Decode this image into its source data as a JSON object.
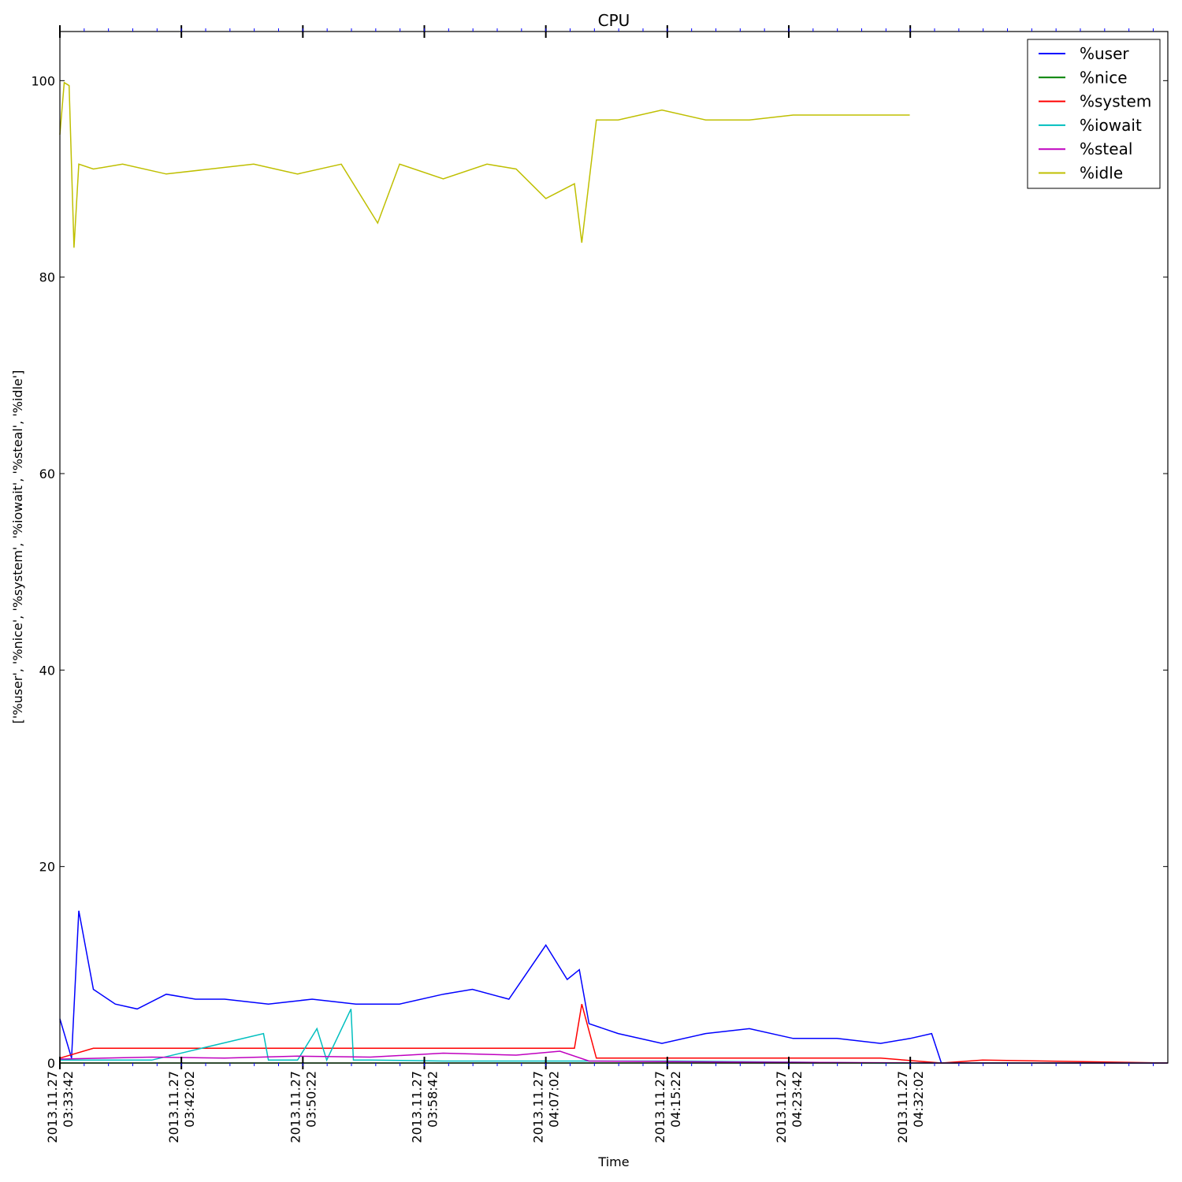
{
  "chart_data": {
    "type": "line",
    "title": "CPU",
    "xlabel": "Time",
    "ylabel": "['%user', '%nice', '%system', '%iowait', '%steal', '%idle']",
    "xlim": [
      "2013-11-27T03:33:42",
      "2013-11-27T04:49:42"
    ],
    "ylim": [
      0,
      105
    ],
    "yticks": [
      0,
      20,
      40,
      60,
      80,
      100
    ],
    "xticks": [
      {
        "value": "2013-11-27T03:33:42",
        "line1": "2013.11.27",
        "line2": "03:33:42"
      },
      {
        "value": "2013-11-27T03:42:02",
        "line1": "2013.11.27",
        "line2": "03:42:02"
      },
      {
        "value": "2013-11-27T03:50:22",
        "line1": "2013.11.27",
        "line2": "03:50:22"
      },
      {
        "value": "2013-11-27T03:58:42",
        "line1": "2013.11.27",
        "line2": "03:58:42"
      },
      {
        "value": "2013-11-27T04:07:02",
        "line1": "2013.11.27",
        "line2": "04:07:02"
      },
      {
        "value": "2013-11-27T04:15:22",
        "line1": "2013.11.27",
        "line2": "04:15:22"
      },
      {
        "value": "2013-11-27T04:23:42",
        "line1": "2013.11.27",
        "line2": "04:23:42"
      },
      {
        "value": "2013-11-27T04:32:02",
        "line1": "2013.11.27",
        "line2": "04:32:02"
      }
    ],
    "grid": false,
    "legend": "top-right",
    "series": [
      {
        "name": "%user",
        "color": "#0000ff",
        "x": [
          "2013-11-27T03:33:42",
          "2013-11-27T03:34:30",
          "2013-11-27T03:35:00",
          "2013-11-27T03:36:00",
          "2013-11-27T03:37:30",
          "2013-11-27T03:39:00",
          "2013-11-27T03:41:00",
          "2013-11-27T03:43:00",
          "2013-11-27T03:45:00",
          "2013-11-27T03:48:00",
          "2013-11-27T03:51:00",
          "2013-11-27T03:54:00",
          "2013-11-27T03:57:00",
          "2013-11-27T04:00:00",
          "2013-11-27T04:02:00",
          "2013-11-27T04:04:30",
          "2013-11-27T04:07:02",
          "2013-11-27T04:08:30",
          "2013-11-27T04:09:20",
          "2013-11-27T04:10:00",
          "2013-11-27T04:12:00",
          "2013-11-27T04:15:00",
          "2013-11-27T04:18:00",
          "2013-11-27T04:21:00",
          "2013-11-27T04:24:00",
          "2013-11-27T04:27:00",
          "2013-11-27T04:30:00",
          "2013-11-27T04:32:02",
          "2013-11-27T04:33:30",
          "2013-11-27T04:34:10",
          "2013-11-27T04:49:42"
        ],
        "y": [
          4.5,
          0.5,
          15.5,
          7.5,
          6.0,
          5.5,
          7.0,
          6.5,
          6.5,
          6.0,
          6.5,
          6.0,
          6.0,
          7.0,
          7.5,
          6.5,
          12.0,
          8.5,
          9.5,
          4.0,
          3.0,
          2.0,
          3.0,
          3.5,
          2.5,
          2.5,
          2.0,
          2.5,
          3.0,
          0.0,
          0.0
        ]
      },
      {
        "name": "%nice",
        "color": "#008000",
        "x": [
          "2013-11-27T03:33:42",
          "2013-11-27T04:34:10",
          "2013-11-27T04:49:42"
        ],
        "y": [
          0.0,
          0.0,
          0.0
        ]
      },
      {
        "name": "%system",
        "color": "#ff0000",
        "x": [
          "2013-11-27T03:33:42",
          "2013-11-27T03:36:00",
          "2013-11-27T03:40:00",
          "2013-11-27T03:45:00",
          "2013-11-27T03:50:00",
          "2013-11-27T03:55:00",
          "2013-11-27T04:00:00",
          "2013-11-27T04:05:00",
          "2013-11-27T04:09:00",
          "2013-11-27T04:09:30",
          "2013-11-27T04:10:30",
          "2013-11-27T04:15:00",
          "2013-11-27T04:20:00",
          "2013-11-27T04:25:00",
          "2013-11-27T04:30:00",
          "2013-11-27T04:34:10",
          "2013-11-27T04:37:00",
          "2013-11-27T04:49:42"
        ],
        "y": [
          0.5,
          1.5,
          1.5,
          1.5,
          1.5,
          1.5,
          1.5,
          1.5,
          1.5,
          6.0,
          0.5,
          0.5,
          0.5,
          0.5,
          0.5,
          0.0,
          0.3,
          0.0
        ]
      },
      {
        "name": "%iowait",
        "color": "#00bfbf",
        "x": [
          "2013-11-27T03:33:42",
          "2013-11-27T03:40:00",
          "2013-11-27T03:47:40",
          "2013-11-27T03:48:00",
          "2013-11-27T03:50:00",
          "2013-11-27T03:51:20",
          "2013-11-27T03:52:00",
          "2013-11-27T03:53:40",
          "2013-11-27T03:53:50",
          "2013-11-27T03:55:00",
          "2013-11-27T04:00:00",
          "2013-11-27T04:05:00",
          "2013-11-27T04:10:00",
          "2013-11-27T04:16:00",
          "2013-11-27T04:30:00",
          "2013-11-27T04:49:42"
        ],
        "y": [
          0.3,
          0.3,
          3.0,
          0.3,
          0.3,
          3.5,
          0.3,
          5.5,
          0.3,
          0.3,
          0.2,
          0.2,
          0.2,
          0.2,
          0.0,
          0.0
        ]
      },
      {
        "name": "%steal",
        "color": "#bf00bf",
        "x": [
          "2013-11-27T03:33:42",
          "2013-11-27T03:40:00",
          "2013-11-27T03:45:00",
          "2013-11-27T03:50:00",
          "2013-11-27T03:55:00",
          "2013-11-27T04:00:00",
          "2013-11-27T04:05:00",
          "2013-11-27T04:08:00",
          "2013-11-27T04:10:00",
          "2013-11-27T04:20:00",
          "2013-11-27T04:34:10",
          "2013-11-27T04:49:42"
        ],
        "y": [
          0.4,
          0.6,
          0.5,
          0.7,
          0.6,
          1.0,
          0.8,
          1.2,
          0.2,
          0.1,
          0.0,
          0.0
        ]
      },
      {
        "name": "%idle",
        "color": "#bfbf00",
        "x": [
          "2013-11-27T03:33:42",
          "2013-11-27T03:34:00",
          "2013-11-27T03:34:20",
          "2013-11-27T03:34:40",
          "2013-11-27T03:35:00",
          "2013-11-27T03:36:00",
          "2013-11-27T03:38:00",
          "2013-11-27T03:41:00",
          "2013-11-27T03:44:00",
          "2013-11-27T03:47:00",
          "2013-11-27T03:50:00",
          "2013-11-27T03:53:00",
          "2013-11-27T03:55:30",
          "2013-11-27T03:57:00",
          "2013-11-27T04:00:00",
          "2013-11-27T04:03:00",
          "2013-11-27T04:05:00",
          "2013-11-27T04:07:02",
          "2013-11-27T04:09:00",
          "2013-11-27T04:09:30",
          "2013-11-27T04:10:30",
          "2013-11-27T04:12:00",
          "2013-11-27T04:15:00",
          "2013-11-27T04:18:00",
          "2013-11-27T04:21:00",
          "2013-11-27T04:24:00",
          "2013-11-27T04:27:00",
          "2013-11-27T04:30:00",
          "2013-11-27T04:32:00"
        ],
        "y": [
          94.5,
          99.8,
          99.5,
          83.0,
          91.5,
          91.0,
          91.5,
          90.5,
          91.0,
          91.5,
          90.5,
          91.5,
          85.5,
          91.5,
          90.0,
          91.5,
          91.0,
          88.0,
          89.5,
          83.5,
          96.0,
          96.0,
          97.0,
          96.0,
          96.0,
          96.5,
          96.5,
          96.5,
          96.5
        ]
      }
    ]
  }
}
